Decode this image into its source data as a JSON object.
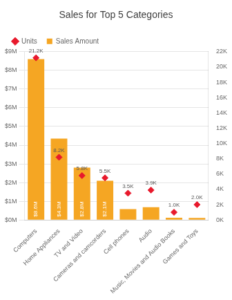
{
  "chart_data": {
    "type": "bar",
    "title": "Sales for Top 5 Categories",
    "categories": [
      "Computers",
      "Home Appliances",
      "TV and Video",
      "Cameras and camcorders",
      "Cell phones",
      "Audio",
      "Music, Movies and Audio Books",
      "Games and Toys"
    ],
    "series": [
      {
        "name": "Sales Amount",
        "type": "bar",
        "color": "#F5A623",
        "values": [
          8600000,
          4350000,
          2800000,
          2100000,
          580000,
          680000,
          120000,
          110000
        ],
        "value_labels": [
          "$8.6M",
          "$4.3M",
          "$2.8M",
          "$2.1M",
          null,
          null,
          null,
          null
        ]
      },
      {
        "name": "Units",
        "type": "scatter",
        "marker": "diamond",
        "color": "#E8192C",
        "axis": "y2",
        "values": [
          21200,
          8200,
          5800,
          5500,
          3500,
          3900,
          1000,
          2000
        ],
        "value_labels": [
          "21.2K",
          "8.2K",
          "5.8K",
          "5.5K",
          "3.5K",
          "3.9K",
          "1.0K",
          "2.0K"
        ]
      }
    ],
    "ylim": [
      0,
      9000000
    ],
    "yticks": [
      {
        "value": 0,
        "label": "$0M"
      },
      {
        "value": 1000000,
        "label": "$1M"
      },
      {
        "value": 2000000,
        "label": "$2M"
      },
      {
        "value": 3000000,
        "label": "$3M"
      },
      {
        "value": 4000000,
        "label": "$4M"
      },
      {
        "value": 5000000,
        "label": "$5M"
      },
      {
        "value": 6000000,
        "label": "$6M"
      },
      {
        "value": 7000000,
        "label": "$7M"
      },
      {
        "value": 8000000,
        "label": "$8M"
      },
      {
        "value": 9000000,
        "label": "$9M"
      }
    ],
    "y2lim": [
      0,
      22000
    ],
    "y2ticks": [
      {
        "value": 0,
        "label": "0K"
      },
      {
        "value": 2000,
        "label": "2K"
      },
      {
        "value": 4000,
        "label": "4K"
      },
      {
        "value": 6000,
        "label": "6K"
      },
      {
        "value": 8000,
        "label": "8K"
      },
      {
        "value": 10000,
        "label": "10K"
      },
      {
        "value": 12000,
        "label": "12K"
      },
      {
        "value": 14000,
        "label": "14K"
      },
      {
        "value": 16000,
        "label": "16K"
      },
      {
        "value": 18000,
        "label": "18K"
      },
      {
        "value": 20000,
        "label": "20K"
      },
      {
        "value": 22000,
        "label": "22K"
      }
    ],
    "grid": true,
    "legend": "upper left"
  }
}
